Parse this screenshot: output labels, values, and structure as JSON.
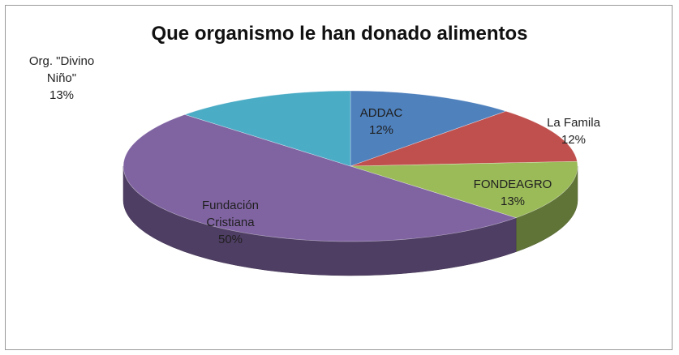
{
  "chart_data": {
    "type": "pie",
    "title": "Que organismo le han donado alimentos",
    "slices": [
      {
        "label": "ADDAC",
        "value": 12,
        "value_label": "12%",
        "color": "#4F81BD"
      },
      {
        "label": "La Famila",
        "value": 12,
        "value_label": "12%",
        "color": "#C0504D"
      },
      {
        "label": "FONDEAGRO",
        "value": 13,
        "value_label": "13%",
        "color": "#9BBB59"
      },
      {
        "label": "Fundación Cristiana",
        "value": 50,
        "value_label": "50%",
        "color": "#8064A2"
      },
      {
        "label": "Org. \"Divino Niño\"",
        "value": 13,
        "value_label": "13%",
        "color": "#4BACC6"
      }
    ],
    "start": "top, clockwise",
    "style": "3d"
  }
}
